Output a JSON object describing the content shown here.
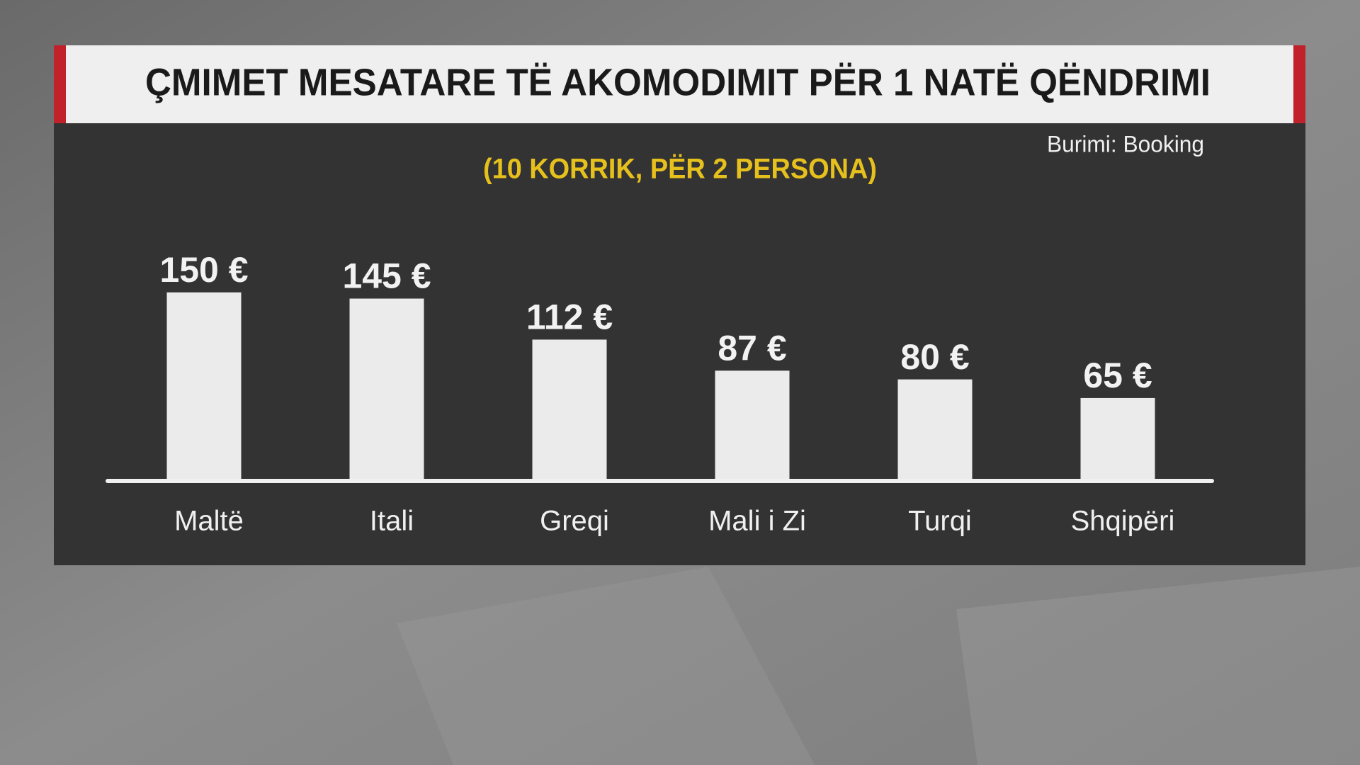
{
  "chart_data": {
    "type": "bar",
    "title": "ÇMIMET MESATARE TË AKOMODIMIT PËR 1 NATË QËNDRIMI",
    "subtitle": "(10 KORRIK, PËR 2 PERSONA)",
    "source": "Burimi: Booking",
    "categories": [
      "Maltë",
      "Itali",
      "Greqi",
      "Mali i Zi",
      "Turqi",
      "Shqipëri"
    ],
    "values": [
      150,
      145,
      112,
      87,
      80,
      65
    ],
    "value_labels": [
      "150 €",
      "145 €",
      "112 €",
      "87 €",
      "80 €",
      "65 €"
    ],
    "color": "#ebebeb"
  }
}
